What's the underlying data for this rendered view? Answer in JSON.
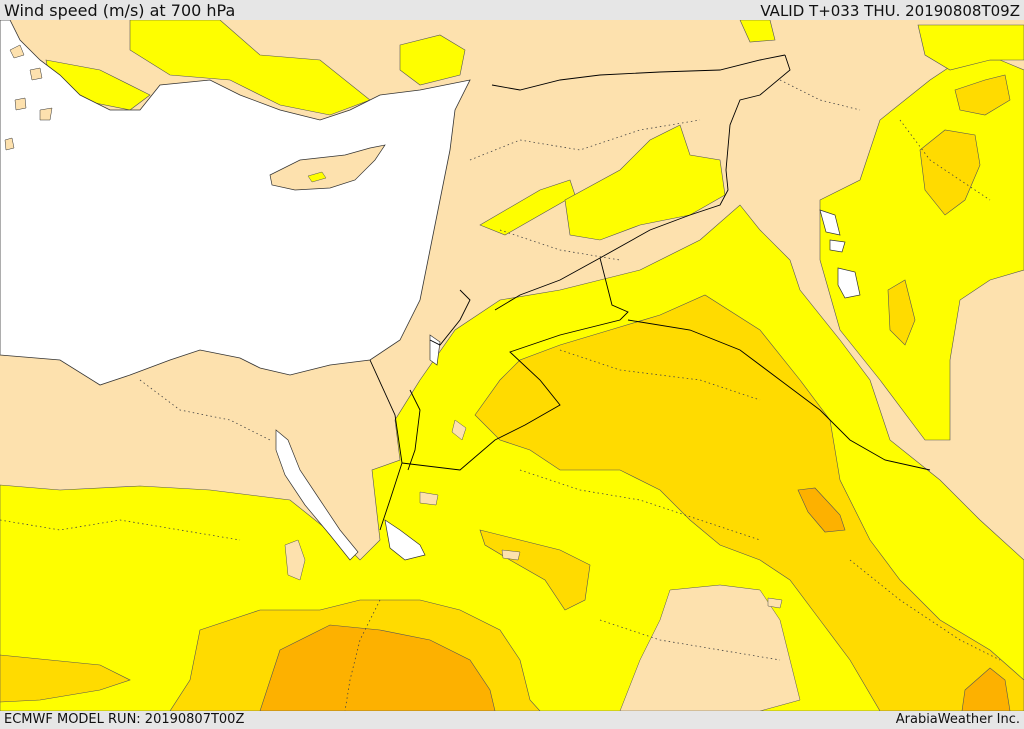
{
  "header": {
    "title": "Wind speed (m/s) at 700 hPa",
    "valid": "VALID T+033 THU. 20190808T09Z"
  },
  "footer": {
    "model_run": "ECMWF MODEL RUN: 20190807T00Z",
    "credit": "ArabiaWeather Inc."
  },
  "colors": {
    "sea": "#ffffff",
    "land_below_threshold": "#fde1ae",
    "wind_band_1": "#fefe00",
    "wind_band_2": "#ffdb00",
    "wind_band_3": "#fdb100",
    "border_line": "#000000",
    "contour_line": "#555555"
  }
}
